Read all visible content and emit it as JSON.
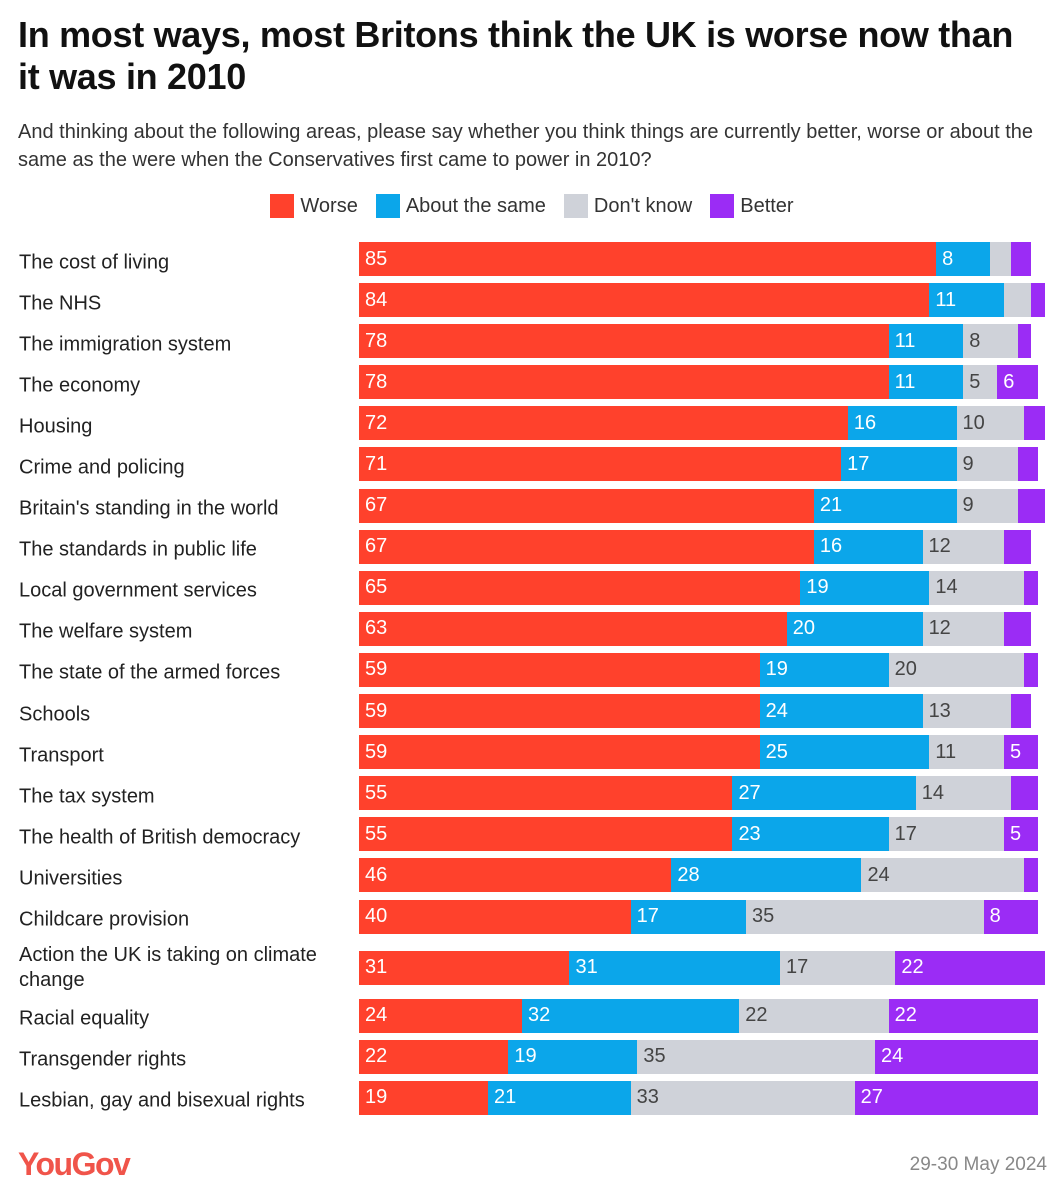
{
  "chart_data": {
    "type": "bar",
    "orientation": "horizontal",
    "stacked": true,
    "title": "In most ways, most Britons think the UK is worse now than it was in 2010",
    "subtitle": "And thinking about the following areas, please say whether you think things are currently better, worse or about the same as the were when the Conservatives first came to power in 2010?",
    "legend_position": "top",
    "series_meta": [
      {
        "name": "Worse",
        "color": "#ff412c"
      },
      {
        "name": "About the same",
        "color": "#0ba6ea"
      },
      {
        "name": "Don't know",
        "color": "#cfd2d9"
      },
      {
        "name": "Better",
        "color": "#9b2cf5"
      }
    ],
    "categories": [
      "The cost of living",
      "The NHS",
      "The immigration system",
      "The economy",
      "Housing",
      "Crime and policing",
      "Britain's standing in the world",
      "The standards in public life",
      "Local government services",
      "The welfare system",
      "The state of the armed forces",
      "Schools",
      "Transport",
      "The tax system",
      "The health of British democracy",
      "Universities",
      "Childcare provision",
      "Action the UK is taking on climate change",
      "Racial equality",
      "Transgender rights",
      "Lesbian, gay and bisexual rights"
    ],
    "series": [
      {
        "name": "Worse",
        "values": [
          85,
          84,
          78,
          78,
          72,
          71,
          67,
          67,
          65,
          63,
          59,
          59,
          59,
          55,
          55,
          46,
          40,
          31,
          24,
          22,
          19
        ]
      },
      {
        "name": "About the same",
        "values": [
          8,
          11,
          11,
          11,
          16,
          17,
          21,
          16,
          19,
          20,
          19,
          24,
          25,
          27,
          23,
          28,
          17,
          31,
          32,
          19,
          21
        ]
      },
      {
        "name": "Don't know",
        "values": [
          3,
          4,
          8,
          5,
          10,
          9,
          9,
          12,
          14,
          12,
          20,
          13,
          11,
          14,
          17,
          24,
          35,
          17,
          22,
          35,
          33
        ]
      },
      {
        "name": "Better",
        "values": [
          3,
          2,
          2,
          6,
          3,
          3,
          4,
          4,
          2,
          4,
          2,
          3,
          5,
          4,
          5,
          2,
          8,
          22,
          22,
          24,
          27
        ]
      }
    ],
    "xlim": [
      0,
      100
    ],
    "grid": false
  },
  "footer": {
    "logo": "YouGov",
    "date": "29-30 May 2024"
  }
}
